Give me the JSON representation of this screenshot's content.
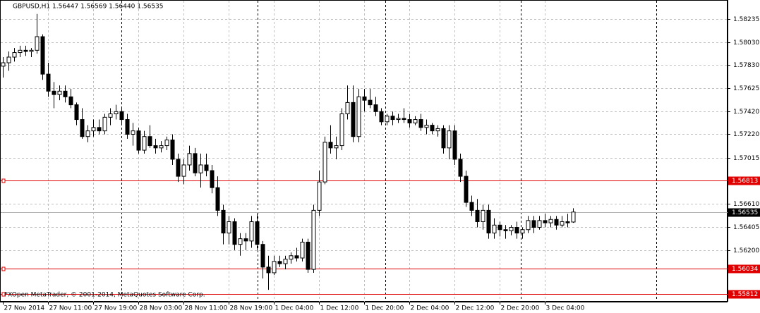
{
  "chart_data": {
    "type": "candlestick",
    "title": "GBPUSD,H1  1.56447 1.56569 1.56440 1.56535",
    "footer": "FXOpen MetaTrader, © 2001-2014, MetaQuotes Software Corp.",
    "categories": [
      "27 Nov 2014",
      null,
      null,
      null,
      null,
      null,
      null,
      null,
      "27 Nov 11:00",
      null,
      null,
      null,
      null,
      null,
      null,
      null,
      "27 Nov 19:00",
      null,
      null,
      null,
      null,
      null,
      null,
      null,
      "28 Nov 03:00",
      null,
      null,
      null,
      null,
      null,
      null,
      null,
      "28 Nov 11:00",
      null,
      null,
      null,
      null,
      null,
      null,
      null,
      "28 Nov 19:00",
      null,
      null,
      null,
      null,
      null,
      null,
      null,
      "1 Dec 04:00",
      null,
      null,
      null,
      null,
      null,
      null,
      null,
      "1 Dec 12:00",
      null,
      null,
      null,
      null,
      null,
      null,
      null,
      "1 Dec 20:00",
      null,
      null,
      null,
      null,
      null,
      null,
      null,
      "2 Dec 04:00",
      null,
      null,
      null,
      null,
      null,
      null,
      null,
      "2 Dec 12:00",
      null,
      null,
      null,
      null,
      null,
      null,
      null,
      "2 Dec 20:00",
      null,
      null,
      null,
      null,
      null,
      null,
      null,
      "3 Dec 04:00",
      null,
      null,
      null,
      null,
      null
    ],
    "series": [
      {
        "name": "GBPUSD,H1",
        "up_color": "#ffffff",
        "down_color": "#000000",
        "ohlc": [
          [
            1.5782,
            1.579,
            1.5772,
            1.5785
          ],
          [
            1.5785,
            1.5795,
            1.5778,
            1.579
          ],
          [
            1.579,
            1.5798,
            1.5786,
            1.5794
          ],
          [
            1.5794,
            1.58,
            1.579,
            1.5796
          ],
          [
            1.5796,
            1.58,
            1.5791,
            1.5795
          ],
          [
            1.5795,
            1.5798,
            1.579,
            1.5796
          ],
          [
            1.5796,
            1.5828,
            1.5793,
            1.5808
          ],
          [
            1.5808,
            1.581,
            1.577,
            1.5775
          ],
          [
            1.5775,
            1.5785,
            1.5755,
            1.576
          ],
          [
            1.576,
            1.5768,
            1.5745,
            1.5757
          ],
          [
            1.5757,
            1.5765,
            1.5752,
            1.576
          ],
          [
            1.576,
            1.5765,
            1.575,
            1.5755
          ],
          [
            1.5755,
            1.5762,
            1.5745,
            1.5748
          ],
          [
            1.5748,
            1.575,
            1.573,
            1.5735
          ],
          [
            1.5735,
            1.5745,
            1.5718,
            1.572
          ],
          [
            1.572,
            1.573,
            1.5715,
            1.5725
          ],
          [
            1.5725,
            1.5735,
            1.572,
            1.5728
          ],
          [
            1.5728,
            1.5735,
            1.5722,
            1.5725
          ],
          [
            1.5725,
            1.574,
            1.5722,
            1.5737
          ],
          [
            1.5737,
            1.5745,
            1.573,
            1.574
          ],
          [
            1.574,
            1.5748,
            1.5735,
            1.5742
          ],
          [
            1.5742,
            1.5745,
            1.573,
            1.5735
          ],
          [
            1.5735,
            1.574,
            1.5718,
            1.5722
          ],
          [
            1.5722,
            1.5732,
            1.5712,
            1.5725
          ],
          [
            1.5725,
            1.5728,
            1.5705,
            1.5708
          ],
          [
            1.5708,
            1.5725,
            1.5705,
            1.572
          ],
          [
            1.572,
            1.573,
            1.571,
            1.5712
          ],
          [
            1.5712,
            1.5718,
            1.5705,
            1.571
          ],
          [
            1.571,
            1.5716,
            1.5706,
            1.5712
          ],
          [
            1.5712,
            1.572,
            1.5708,
            1.5717
          ],
          [
            1.5717,
            1.5722,
            1.5695,
            1.57
          ],
          [
            1.57,
            1.5705,
            1.568,
            1.5685
          ],
          [
            1.5685,
            1.57,
            1.5678,
            1.5695
          ],
          [
            1.5695,
            1.5712,
            1.569,
            1.5705
          ],
          [
            1.5705,
            1.571,
            1.5685,
            1.5688
          ],
          [
            1.5688,
            1.5705,
            1.5675,
            1.5695
          ],
          [
            1.5695,
            1.5705,
            1.5685,
            1.569
          ],
          [
            1.569,
            1.5695,
            1.567,
            1.5675
          ],
          [
            1.5675,
            1.5685,
            1.565,
            1.5655
          ],
          [
            1.5655,
            1.566,
            1.5625,
            1.5635
          ],
          [
            1.5635,
            1.565,
            1.5625,
            1.5645
          ],
          [
            1.5645,
            1.5648,
            1.562,
            1.5625
          ],
          [
            1.5625,
            1.5635,
            1.5615,
            1.563
          ],
          [
            1.563,
            1.5635,
            1.562,
            1.5628
          ],
          [
            1.5628,
            1.565,
            1.5622,
            1.5645
          ],
          [
            1.5645,
            1.5652,
            1.562,
            1.5625
          ],
          [
            1.5625,
            1.5628,
            1.5595,
            1.5605
          ],
          [
            1.5605,
            1.5615,
            1.5585,
            1.56
          ],
          [
            1.56,
            1.5615,
            1.5598,
            1.561
          ],
          [
            1.561,
            1.5615,
            1.5605,
            1.5608
          ],
          [
            1.5608,
            1.5615,
            1.5603,
            1.5612
          ],
          [
            1.5612,
            1.5618,
            1.5608,
            1.5615
          ],
          [
            1.5615,
            1.5622,
            1.561,
            1.5613
          ],
          [
            1.5613,
            1.563,
            1.561,
            1.5627
          ],
          [
            1.5627,
            1.563,
            1.56,
            1.5603
          ],
          [
            1.5603,
            1.566,
            1.56,
            1.5655
          ],
          [
            1.5655,
            1.569,
            1.565,
            1.568
          ],
          [
            1.568,
            1.572,
            1.5678,
            1.5715
          ],
          [
            1.5715,
            1.573,
            1.5705,
            1.571
          ],
          [
            1.571,
            1.572,
            1.57,
            1.5712
          ],
          [
            1.5712,
            1.5745,
            1.5708,
            1.574
          ],
          [
            1.574,
            1.5765,
            1.5735,
            1.575
          ],
          [
            1.575,
            1.5765,
            1.5715,
            1.572
          ],
          [
            1.572,
            1.5762,
            1.5715,
            1.5755
          ],
          [
            1.5755,
            1.5762,
            1.5742,
            1.5752
          ],
          [
            1.5752,
            1.5762,
            1.5745,
            1.5748
          ],
          [
            1.5748,
            1.5755,
            1.5738,
            1.5742
          ],
          [
            1.5742,
            1.5745,
            1.573,
            1.5733
          ],
          [
            1.5733,
            1.574,
            1.573,
            1.5738
          ],
          [
            1.5738,
            1.5742,
            1.573,
            1.5735
          ],
          [
            1.5735,
            1.574,
            1.5732,
            1.5736
          ],
          [
            1.5736,
            1.5745,
            1.5732,
            1.5735
          ],
          [
            1.5735,
            1.574,
            1.5728,
            1.5732
          ],
          [
            1.5732,
            1.5738,
            1.573,
            1.5735
          ],
          [
            1.5735,
            1.574,
            1.5725,
            1.5728
          ],
          [
            1.5728,
            1.5735,
            1.5722,
            1.573
          ],
          [
            1.573,
            1.5732,
            1.5722,
            1.5725
          ],
          [
            1.5725,
            1.573,
            1.572,
            1.5727
          ],
          [
            1.5727,
            1.573,
            1.5705,
            1.571
          ],
          [
            1.571,
            1.573,
            1.57,
            1.5725
          ],
          [
            1.5725,
            1.573,
            1.5695,
            1.57
          ],
          [
            1.57,
            1.5705,
            1.568,
            1.5685
          ],
          [
            1.5685,
            1.569,
            1.5658,
            1.5662
          ],
          [
            1.5662,
            1.5668,
            1.565,
            1.5655
          ],
          [
            1.5655,
            1.5665,
            1.564,
            1.5645
          ],
          [
            1.5645,
            1.566,
            1.5638,
            1.5655
          ],
          [
            1.5655,
            1.566,
            1.563,
            1.5635
          ],
          [
            1.5635,
            1.5648,
            1.563,
            1.5642
          ],
          [
            1.5642,
            1.5645,
            1.5632,
            1.5638
          ],
          [
            1.5638,
            1.5642,
            1.563,
            1.5637
          ],
          [
            1.5637,
            1.5642,
            1.5633,
            1.564
          ],
          [
            1.564,
            1.5645,
            1.563,
            1.5635
          ],
          [
            1.5635,
            1.564,
            1.563,
            1.5638
          ],
          [
            1.5638,
            1.565,
            1.5635,
            1.5646
          ],
          [
            1.5646,
            1.565,
            1.5635,
            1.564
          ],
          [
            1.564,
            1.565,
            1.5638,
            1.5646
          ],
          [
            1.5646,
            1.5652,
            1.564,
            1.5644
          ],
          [
            1.5644,
            1.565,
            1.564,
            1.5647
          ],
          [
            1.5647,
            1.565,
            1.5638,
            1.5642
          ],
          [
            1.5642,
            1.565,
            1.564,
            1.5645
          ],
          [
            1.5645,
            1.5652,
            1.564,
            1.5644
          ],
          [
            1.56447,
            1.56569,
            1.5644,
            1.56535
          ]
        ]
      }
    ],
    "ylim": [
      1.55745,
      1.58403
    ],
    "yticks": [
      1.58235,
      {
        "value": 1.5803,
        "label": "1.58030"
      },
      {
        "value": 1.5783,
        "label": "1.57830"
      },
      1.57625,
      {
        "value": 1.5742,
        "label": "1.57420"
      },
      {
        "value": 1.5722,
        "label": "1.57220"
      },
      1.57015,
      {
        "value": 1.5661,
        "label": "1.56610"
      },
      1.56405,
      {
        "value": 1.562,
        "label": "1.56200"
      }
    ],
    "grid": true,
    "levels": [
      {
        "value": 1.56813,
        "color": "#e00000"
      },
      {
        "value": 1.56034,
        "color": "#e00000"
      },
      {
        "value": 1.55812,
        "color": "#e00000"
      }
    ],
    "current_price": {
      "value": 1.56535,
      "color": "#000000"
    }
  }
}
